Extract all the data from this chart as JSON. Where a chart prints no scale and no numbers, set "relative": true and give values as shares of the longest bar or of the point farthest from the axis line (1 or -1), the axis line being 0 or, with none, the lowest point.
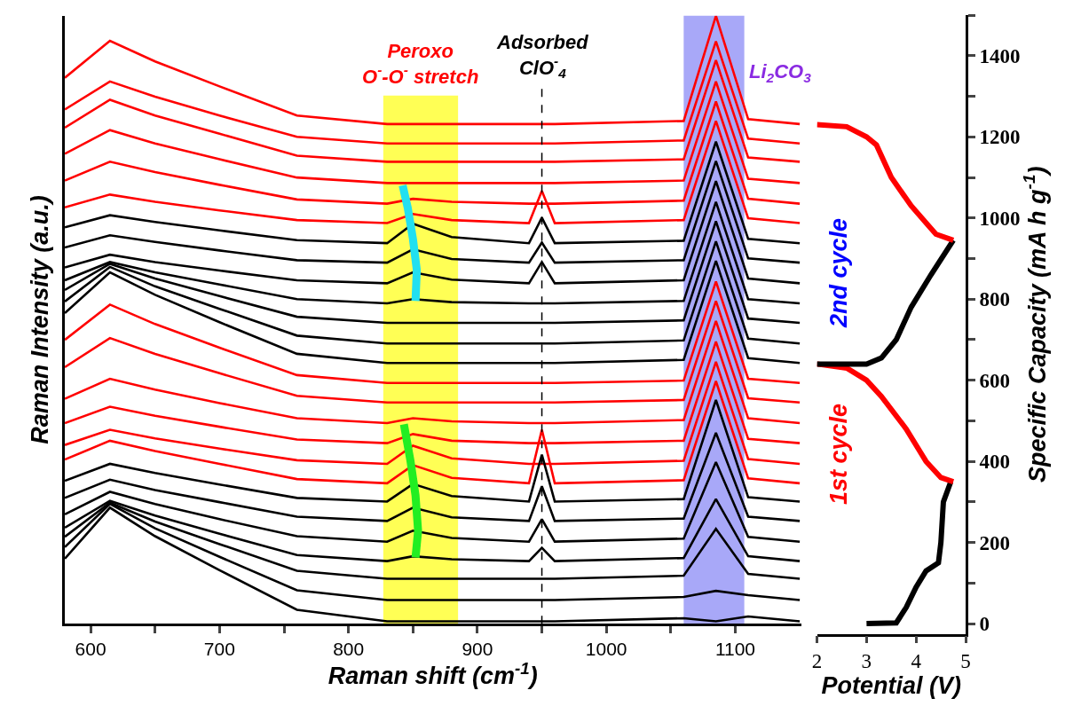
{
  "chart_data": [
    {
      "type": "line",
      "relative": true,
      "xlabel": "Raman shift (cm$^{-1}$)",
      "ylabel": "Raman Intensity (a.u.)",
      "tick_labels": "x",
      "xlim": [
        580,
        1151
      ],
      "xticks": [
        600,
        {
          "value": 650,
          "label": null
        },
        700,
        {
          "value": 750,
          "label": null
        },
        800,
        {
          "value": 850,
          "label": null
        },
        900,
        {
          "value": 950,
          "label": null
        },
        1000,
        {
          "value": 1050,
          "label": null
        },
        1100
      ],
      "x": [
        580,
        615,
        650,
        700,
        760,
        830,
        850,
        880,
        940,
        950,
        960,
        1060,
        1085,
        1110,
        1150
      ],
      "bands": [
        {
          "axis": "x",
          "from": 827,
          "to": 885,
          "color": "#ffff55",
          "label": "Peroxo\nO$^{-}$-O$^{-}$ stretch"
        },
        {
          "axis": "x",
          "from": 1060,
          "to": 1107,
          "color": "#a8a8f8",
          "label": "Li$_{2}$CO$_{3}$"
        }
      ],
      "ref_lines": [
        {
          "axis": "x",
          "value": 950,
          "label": "Adsorbed\nClO$^{-}$$_{4}$",
          "color": "#000000",
          "line_style": "dashed"
        }
      ],
      "series": [
        {
          "color": "#ff0000",
          "values": [
            0.898,
            0.959,
            0.925,
            0.884,
            0.836,
            0.822,
            0.822,
            0.822,
            0.822,
            0.822,
            0.822,
            0.827,
            1.0,
            0.83,
            0.822
          ]
        },
        {
          "color": "#ff0000",
          "values": [
            0.846,
            0.892,
            0.867,
            0.836,
            0.801,
            0.79,
            0.79,
            0.79,
            0.79,
            0.79,
            0.79,
            0.795,
            0.958,
            0.798,
            0.79
          ]
        },
        {
          "color": "#ff0000",
          "values": [
            0.816,
            0.862,
            0.836,
            0.806,
            0.77,
            0.76,
            0.76,
            0.76,
            0.76,
            0.76,
            0.76,
            0.764,
            0.927,
            0.767,
            0.76
          ]
        },
        {
          "color": "#ff0000",
          "values": [
            0.773,
            0.812,
            0.79,
            0.764,
            0.734,
            0.725,
            0.725,
            0.725,
            0.725,
            0.725,
            0.725,
            0.729,
            0.892,
            0.732,
            0.725
          ]
        },
        {
          "color": "#ff0000",
          "values": [
            0.729,
            0.76,
            0.743,
            0.722,
            0.698,
            0.691,
            0.699,
            0.694,
            0.691,
            0.691,
            0.691,
            0.696,
            0.859,
            0.699,
            0.691
          ]
        },
        {
          "color": "#ff0000",
          "values": [
            0.685,
            0.706,
            0.694,
            0.68,
            0.664,
            0.659,
            0.674,
            0.664,
            0.659,
            0.712,
            0.659,
            0.664,
            0.827,
            0.667,
            0.659
          ]
        },
        {
          "color": "#000000",
          "values": [
            0.652,
            0.672,
            0.661,
            0.647,
            0.631,
            0.626,
            0.658,
            0.636,
            0.626,
            0.668,
            0.626,
            0.63,
            0.793,
            0.633,
            0.626
          ]
        },
        {
          "color": "#000000",
          "values": [
            0.619,
            0.639,
            0.628,
            0.614,
            0.598,
            0.594,
            0.616,
            0.6,
            0.594,
            0.627,
            0.594,
            0.598,
            0.761,
            0.601,
            0.594
          ]
        },
        {
          "color": "#000000",
          "values": [
            0.586,
            0.607,
            0.595,
            0.581,
            0.565,
            0.56,
            0.578,
            0.566,
            0.56,
            0.595,
            0.56,
            0.565,
            0.728,
            0.568,
            0.56
          ]
        },
        {
          "color": "#000000",
          "values": [
            0.565,
            0.595,
            0.578,
            0.558,
            0.534,
            0.527,
            0.534,
            0.529,
            0.527,
            0.527,
            0.527,
            0.531,
            0.694,
            0.534,
            0.527
          ]
        },
        {
          "color": "#000000",
          "values": [
            0.549,
            0.592,
            0.568,
            0.539,
            0.505,
            0.495,
            0.495,
            0.495,
            0.495,
            0.495,
            0.495,
            0.499,
            0.662,
            0.502,
            0.495
          ]
        },
        {
          "color": "#000000",
          "values": [
            0.53,
            0.587,
            0.555,
            0.518,
            0.474,
            0.461,
            0.461,
            0.461,
            0.461,
            0.461,
            0.461,
            0.466,
            0.629,
            0.469,
            0.461
          ]
        },
        {
          "color": "#000000",
          "values": [
            0.511,
            0.578,
            0.541,
            0.496,
            0.444,
            0.429,
            0.429,
            0.429,
            0.429,
            0.429,
            0.429,
            0.434,
            0.597,
            0.437,
            0.429
          ]
        },
        {
          "color": "#ff0000",
          "values": [
            0.467,
            0.525,
            0.493,
            0.454,
            0.409,
            0.396,
            0.396,
            0.396,
            0.396,
            0.396,
            0.396,
            0.4,
            0.563,
            0.403,
            0.396
          ]
        },
        {
          "color": "#ff0000",
          "values": [
            0.422,
            0.47,
            0.444,
            0.412,
            0.375,
            0.364,
            0.364,
            0.364,
            0.364,
            0.364,
            0.364,
            0.368,
            0.531,
            0.371,
            0.364
          ]
        },
        {
          "color": "#ff0000",
          "values": [
            0.37,
            0.403,
            0.385,
            0.363,
            0.338,
            0.33,
            0.338,
            0.333,
            0.33,
            0.33,
            0.33,
            0.335,
            0.498,
            0.338,
            0.33
          ]
        },
        {
          "color": "#ff0000",
          "values": [
            0.33,
            0.357,
            0.342,
            0.324,
            0.303,
            0.297,
            0.312,
            0.301,
            0.297,
            0.297,
            0.297,
            0.301,
            0.464,
            0.304,
            0.297
          ]
        },
        {
          "color": "#ff0000",
          "values": [
            0.294,
            0.319,
            0.305,
            0.288,
            0.269,
            0.263,
            0.293,
            0.272,
            0.263,
            0.263,
            0.263,
            0.268,
            0.431,
            0.271,
            0.263
          ]
        },
        {
          "color": "#ff0000",
          "values": [
            0.27,
            0.301,
            0.284,
            0.263,
            0.238,
            0.231,
            0.261,
            0.24,
            0.231,
            0.319,
            0.231,
            0.236,
            0.399,
            0.239,
            0.231
          ]
        },
        {
          "color": "#000000",
          "values": [
            0.235,
            0.263,
            0.248,
            0.229,
            0.207,
            0.201,
            0.23,
            0.21,
            0.201,
            0.278,
            0.201,
            0.205,
            0.368,
            0.208,
            0.201
          ]
        },
        {
          "color": "#000000",
          "values": [
            0.207,
            0.237,
            0.22,
            0.2,
            0.176,
            0.169,
            0.191,
            0.175,
            0.169,
            0.226,
            0.169,
            0.173,
            0.314,
            0.176,
            0.169
          ]
        },
        {
          "color": "#000000",
          "values": [
            0.18,
            0.217,
            0.197,
            0.172,
            0.144,
            0.135,
            0.153,
            0.141,
            0.135,
            0.172,
            0.135,
            0.14,
            0.266,
            0.143,
            0.135
          ]
        },
        {
          "color": "#000000",
          "values": [
            0.158,
            0.202,
            0.178,
            0.148,
            0.113,
            0.103,
            0.111,
            0.106,
            0.103,
            0.125,
            0.103,
            0.108,
            0.205,
            0.111,
            0.103
          ]
        },
        {
          "color": "#000000",
          "values": [
            0.143,
            0.199,
            0.168,
            0.131,
            0.087,
            0.074,
            0.074,
            0.074,
            0.074,
            0.074,
            0.074,
            0.079,
            0.156,
            0.082,
            0.074
          ]
        },
        {
          "color": "#000000",
          "values": [
            0.126,
            0.197,
            0.157,
            0.11,
            0.055,
            0.039,
            0.039,
            0.039,
            0.039,
            0.039,
            0.039,
            0.044,
            0.054,
            0.047,
            0.039
          ]
        },
        {
          "color": "#000000",
          "values": [
            0.107,
            0.191,
            0.144,
            0.088,
            0.023,
            0.004,
            0.004,
            0.004,
            0.004,
            0.004,
            0.004,
            0.009,
            0.004,
            0.012,
            0.004
          ]
        },
        {
          "color": "#22e0f0",
          "x": [
            842,
            846,
            850,
            853,
            852
          ],
          "values": [
            0.721,
            0.684,
            0.633,
            0.582,
            0.531
          ]
        },
        {
          "color": "#22ee22",
          "x": [
            843,
            848,
            852,
            854,
            852
          ],
          "values": [
            0.328,
            0.269,
            0.211,
            0.153,
            0.109
          ]
        }
      ]
    },
    {
      "type": "line",
      "xlabel": "Potential (V)",
      "ylabel": "Specific Capacity (mA h g$^{-1}$)",
      "xlim": [
        2,
        5
      ],
      "xticks": [
        2,
        3,
        4,
        5
      ],
      "ylim": [
        -25,
        1500
      ],
      "yticks": [
        0,
        {
          "value": 100,
          "label": null
        },
        200,
        {
          "value": 300,
          "label": null
        },
        400,
        {
          "value": 500,
          "label": null
        },
        600,
        {
          "value": 700,
          "label": null
        },
        800,
        {
          "value": 900,
          "label": null
        },
        1000,
        {
          "value": 1100,
          "label": null
        },
        1200,
        {
          "value": 1300,
          "label": null
        },
        1400,
        {
          "value": 1500,
          "label": null
        }
      ],
      "annotations": [
        "1st cycle",
        "2nd cycle"
      ],
      "series": [
        {
          "color": "#000000",
          "x": [
            3.0,
            3.6,
            3.8,
            4.0,
            4.2,
            4.45,
            4.5,
            4.55,
            4.7
          ],
          "values": [
            0,
            2,
            40,
            90,
            130,
            150,
            200,
            300,
            350
          ]
        },
        {
          "color": "#ff0000",
          "x": [
            4.75,
            4.5,
            4.2,
            3.8,
            3.3,
            3.0,
            2.6,
            2.0
          ],
          "values": [
            350,
            360,
            400,
            480,
            560,
            600,
            630,
            640
          ]
        },
        {
          "color": "#000000",
          "x": [
            2.0,
            3.0,
            3.3,
            3.6,
            3.9,
            4.3,
            4.75
          ],
          "values": [
            640,
            640,
            655,
            700,
            780,
            860,
            945
          ]
        },
        {
          "color": "#ff0000",
          "x": [
            4.75,
            4.4,
            3.9,
            3.5,
            3.2,
            3.0,
            2.6,
            2.0
          ],
          "values": [
            945,
            960,
            1030,
            1100,
            1180,
            1200,
            1225,
            1230
          ]
        }
      ]
    }
  ]
}
